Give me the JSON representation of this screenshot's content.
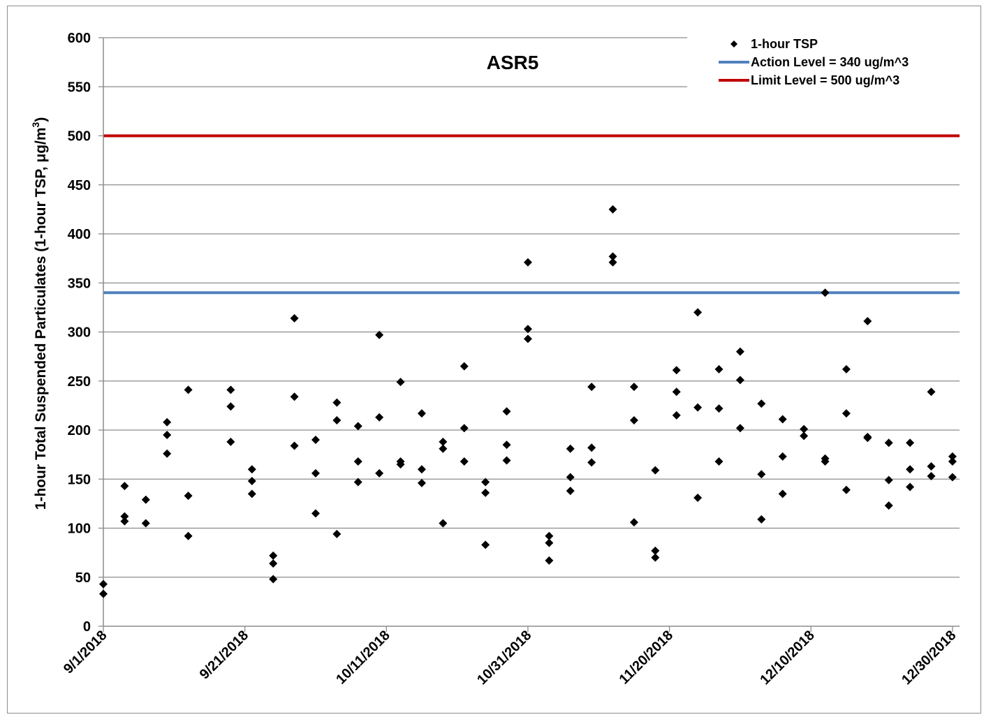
{
  "chart_data": {
    "type": "scatter",
    "title": "ASR5",
    "ylabel": "1-hour Total Suspended Particulates (1-hour TSP, μg/m",
    "ylabel_superscript": "3",
    "ylabel_close": ")",
    "xlabel": "",
    "ylim": [
      0,
      600
    ],
    "y_ticks": [
      "0",
      "50",
      "100",
      "150",
      "200",
      "250",
      "300",
      "350",
      "400",
      "450",
      "500",
      "550",
      "600"
    ],
    "x_range": [
      "2018-09-01",
      "2018-12-31"
    ],
    "x_ticks": [
      "9/1/2018",
      "9/21/2018",
      "10/11/2018",
      "10/31/2018",
      "11/20/2018",
      "12/10/2018",
      "12/30/2018"
    ],
    "x_tick_dates": [
      "2018-09-01",
      "2018-09-21",
      "2018-10-11",
      "2018-10-31",
      "2018-11-20",
      "2018-12-10",
      "2018-12-30"
    ],
    "grid": "horizontal",
    "legend_position": "top-right",
    "series": [
      {
        "name": "1-hour TSP",
        "kind": "markers",
        "marker": "diamond",
        "color": "#000000",
        "points": [
          [
            "2018-09-01",
            43
          ],
          [
            "2018-09-01",
            33
          ],
          [
            "2018-09-04",
            143
          ],
          [
            "2018-09-04",
            112
          ],
          [
            "2018-09-04",
            107
          ],
          [
            "2018-09-07",
            129
          ],
          [
            "2018-09-07",
            105
          ],
          [
            "2018-09-10",
            208
          ],
          [
            "2018-09-10",
            195
          ],
          [
            "2018-09-10",
            176
          ],
          [
            "2018-09-13",
            241
          ],
          [
            "2018-09-13",
            133
          ],
          [
            "2018-09-13",
            92
          ],
          [
            "2018-09-19",
            241
          ],
          [
            "2018-09-19",
            224
          ],
          [
            "2018-09-19",
            188
          ],
          [
            "2018-09-22",
            160
          ],
          [
            "2018-09-22",
            148
          ],
          [
            "2018-09-22",
            135
          ],
          [
            "2018-09-25",
            72
          ],
          [
            "2018-09-25",
            64
          ],
          [
            "2018-09-25",
            48
          ],
          [
            "2018-09-28",
            314
          ],
          [
            "2018-09-28",
            234
          ],
          [
            "2018-09-28",
            184
          ],
          [
            "2018-10-01",
            190
          ],
          [
            "2018-10-01",
            156
          ],
          [
            "2018-10-01",
            115
          ],
          [
            "2018-10-04",
            228
          ],
          [
            "2018-10-04",
            210
          ],
          [
            "2018-10-04",
            94
          ],
          [
            "2018-10-07",
            204
          ],
          [
            "2018-10-07",
            168
          ],
          [
            "2018-10-07",
            147
          ],
          [
            "2018-10-10",
            297
          ],
          [
            "2018-10-10",
            213
          ],
          [
            "2018-10-10",
            156
          ],
          [
            "2018-10-13",
            249
          ],
          [
            "2018-10-13",
            168
          ],
          [
            "2018-10-13",
            165
          ],
          [
            "2018-10-16",
            217
          ],
          [
            "2018-10-16",
            160
          ],
          [
            "2018-10-16",
            146
          ],
          [
            "2018-10-19",
            188
          ],
          [
            "2018-10-19",
            181
          ],
          [
            "2018-10-19",
            105
          ],
          [
            "2018-10-22",
            265
          ],
          [
            "2018-10-22",
            202
          ],
          [
            "2018-10-22",
            168
          ],
          [
            "2018-10-25",
            147
          ],
          [
            "2018-10-25",
            136
          ],
          [
            "2018-10-25",
            83
          ],
          [
            "2018-10-28",
            219
          ],
          [
            "2018-10-28",
            185
          ],
          [
            "2018-10-28",
            169
          ],
          [
            "2018-10-31",
            371
          ],
          [
            "2018-10-31",
            303
          ],
          [
            "2018-10-31",
            293
          ],
          [
            "2018-11-03",
            92
          ],
          [
            "2018-11-03",
            85
          ],
          [
            "2018-11-03",
            67
          ],
          [
            "2018-11-06",
            181
          ],
          [
            "2018-11-06",
            152
          ],
          [
            "2018-11-06",
            138
          ],
          [
            "2018-11-09",
            244
          ],
          [
            "2018-11-09",
            182
          ],
          [
            "2018-11-09",
            167
          ],
          [
            "2018-11-12",
            425
          ],
          [
            "2018-11-12",
            377
          ],
          [
            "2018-11-12",
            371
          ],
          [
            "2018-11-15",
            244
          ],
          [
            "2018-11-15",
            210
          ],
          [
            "2018-11-15",
            106
          ],
          [
            "2018-11-18",
            159
          ],
          [
            "2018-11-18",
            77
          ],
          [
            "2018-11-18",
            70
          ],
          [
            "2018-11-21",
            261
          ],
          [
            "2018-11-21",
            239
          ],
          [
            "2018-11-21",
            215
          ],
          [
            "2018-11-24",
            320
          ],
          [
            "2018-11-24",
            223
          ],
          [
            "2018-11-24",
            131
          ],
          [
            "2018-11-27",
            262
          ],
          [
            "2018-11-27",
            222
          ],
          [
            "2018-11-27",
            168
          ],
          [
            "2018-11-30",
            280
          ],
          [
            "2018-11-30",
            251
          ],
          [
            "2018-11-30",
            202
          ],
          [
            "2018-12-03",
            227
          ],
          [
            "2018-12-03",
            155
          ],
          [
            "2018-12-03",
            109
          ],
          [
            "2018-12-06",
            211
          ],
          [
            "2018-12-06",
            173
          ],
          [
            "2018-12-06",
            135
          ],
          [
            "2018-12-09",
            201
          ],
          [
            "2018-12-09",
            194
          ],
          [
            "2018-12-12",
            340
          ],
          [
            "2018-12-12",
            171
          ],
          [
            "2018-12-12",
            168
          ],
          [
            "2018-12-15",
            262
          ],
          [
            "2018-12-15",
            217
          ],
          [
            "2018-12-15",
            139
          ],
          [
            "2018-12-18",
            311
          ],
          [
            "2018-12-18",
            193
          ],
          [
            "2018-12-18",
            192
          ],
          [
            "2018-12-21",
            187
          ],
          [
            "2018-12-21",
            149
          ],
          [
            "2018-12-21",
            123
          ],
          [
            "2018-12-24",
            187
          ],
          [
            "2018-12-24",
            160
          ],
          [
            "2018-12-24",
            142
          ],
          [
            "2018-12-27",
            239
          ],
          [
            "2018-12-27",
            163
          ],
          [
            "2018-12-27",
            153
          ],
          [
            "2018-12-30",
            173
          ],
          [
            "2018-12-30",
            168
          ],
          [
            "2018-12-30",
            152
          ]
        ]
      },
      {
        "name": "Action Level = 340 ug/m^3",
        "kind": "hline",
        "value": 340,
        "color": "#4f81bd"
      },
      {
        "name": "Limit Level = 500 ug/m^3",
        "kind": "hline",
        "value": 500,
        "color": "#c00000"
      }
    ]
  }
}
